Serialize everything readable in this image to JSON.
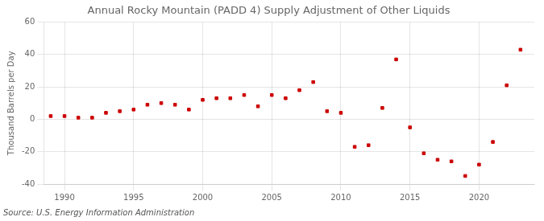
{
  "chart_data": {
    "type": "scatter",
    "title": "Annual Rocky Mountain (PADD 4) Supply Adjustment of Other Liquids",
    "y_label": "Thousand Barrels per Day",
    "annotations": [
      "Source: U.S. Energy Information Administration"
    ],
    "x": [
      1989,
      1990,
      1991,
      1992,
      1993,
      1994,
      1995,
      1996,
      1997,
      1998,
      1999,
      2000,
      2001,
      2002,
      2003,
      2004,
      2005,
      2006,
      2007,
      2008,
      2009,
      2010,
      2011,
      2012,
      2013,
      2014,
      2015,
      2016,
      2017,
      2018,
      2019,
      2020,
      2021,
      2022,
      2023
    ],
    "values": [
      2,
      2,
      1,
      1,
      4,
      5,
      6,
      9,
      10,
      9,
      6,
      12,
      13,
      13,
      15,
      8,
      15,
      13,
      18,
      23,
      5,
      4,
      -17,
      -16,
      7,
      37,
      -5,
      -21,
      -25,
      -26,
      -35,
      -28,
      -14,
      21,
      43
    ],
    "color": "#cc0000",
    "marker": "square",
    "xlim": [
      1988.5,
      2024
    ],
    "ylim": [
      -40,
      60
    ],
    "xticks": [
      1990,
      1995,
      2000,
      2005,
      2010,
      2015,
      2020
    ],
    "yticks": [
      -40,
      -20,
      0,
      20,
      40,
      60
    ],
    "grid": true
  }
}
